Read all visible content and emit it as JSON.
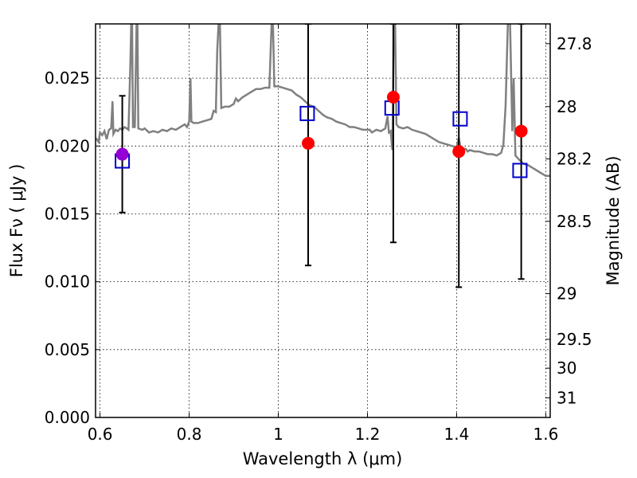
{
  "chart_data": {
    "type": "scatter",
    "xlabel": "Wavelength  λ (μm)",
    "ylabel": "Flux  Fν  ( μJy )",
    "ylabel_right": "Magnitude (AB)",
    "xlim": [
      0.59,
      1.61
    ],
    "ylim": [
      0.0,
      0.029
    ],
    "grid": true,
    "x_ticks": [
      0.6,
      0.8,
      1.0,
      1.2,
      1.4,
      1.6
    ],
    "x_tick_labels": [
      "0.6",
      "0.8",
      "1",
      "1.2",
      "1.4",
      "1.6"
    ],
    "y_ticks": [
      0.0,
      0.005,
      0.01,
      0.015,
      0.02,
      0.025
    ],
    "y_tick_labels": [
      "0.000",
      "0.005",
      "0.010",
      "0.015",
      "0.020",
      "0.025"
    ],
    "right_ticks": [
      {
        "mag": 27.8,
        "label": "27.8"
      },
      {
        "mag": 28.0,
        "label": "28"
      },
      {
        "mag": 28.2,
        "label": "28.2"
      },
      {
        "mag": 28.5,
        "label": "28.5"
      },
      {
        "mag": 29.0,
        "label": "29"
      },
      {
        "mag": 29.5,
        "label": "29.5"
      },
      {
        "mag": 30.0,
        "label": "30"
      },
      {
        "mag": 31.0,
        "label": "31"
      }
    ],
    "observed": [
      {
        "x": 0.65,
        "y": 0.0194,
        "yerr_low": 0.0151,
        "yerr_high": 0.0237,
        "color": "#9400d3"
      },
      {
        "x": 1.067,
        "y": 0.0202,
        "yerr_low": 0.0112,
        "yerr_high": 0.029,
        "color": "#ff0000"
      },
      {
        "x": 1.258,
        "y": 0.0236,
        "yerr_low": 0.0129,
        "yerr_high": 0.029,
        "color": "#ff0000"
      },
      {
        "x": 1.405,
        "y": 0.0196,
        "yerr_low": 0.0096,
        "yerr_high": 0.029,
        "color": "#ff0000"
      },
      {
        "x": 1.545,
        "y": 0.0211,
        "yerr_low": 0.0102,
        "yerr_high": 0.029,
        "color": "#ff0000"
      }
    ],
    "model_points": {
      "color": "#0000cc",
      "points": [
        {
          "x": 0.65,
          "y": 0.0189
        },
        {
          "x": 1.065,
          "y": 0.0224
        },
        {
          "x": 1.255,
          "y": 0.0228
        },
        {
          "x": 1.408,
          "y": 0.022
        },
        {
          "x": 1.542,
          "y": 0.0182
        }
      ]
    },
    "spectrum": {
      "color": "#808080",
      "points": [
        [
          0.59,
          0.0206
        ],
        [
          0.597,
          0.0203
        ],
        [
          0.6,
          0.021
        ],
        [
          0.605,
          0.0208
        ],
        [
          0.61,
          0.0211
        ],
        [
          0.615,
          0.0205
        ],
        [
          0.62,
          0.0212
        ],
        [
          0.625,
          0.0213
        ],
        [
          0.628,
          0.0233
        ],
        [
          0.63,
          0.0209
        ],
        [
          0.635,
          0.0212
        ],
        [
          0.64,
          0.0211
        ],
        [
          0.645,
          0.0213
        ],
        [
          0.65,
          0.0212
        ],
        [
          0.655,
          0.0214
        ],
        [
          0.66,
          0.0213
        ],
        [
          0.664,
          0.0212
        ],
        [
          0.668,
          0.026
        ],
        [
          0.67,
          0.029
        ],
        [
          0.672,
          0.029
        ],
        [
          0.674,
          0.0214
        ],
        [
          0.678,
          0.0214
        ],
        [
          0.682,
          0.029
        ],
        [
          0.684,
          0.029
        ],
        [
          0.686,
          0.0213
        ],
        [
          0.695,
          0.0212
        ],
        [
          0.7,
          0.0213
        ],
        [
          0.71,
          0.021
        ],
        [
          0.72,
          0.0211
        ],
        [
          0.73,
          0.021
        ],
        [
          0.74,
          0.0212
        ],
        [
          0.75,
          0.0211
        ],
        [
          0.76,
          0.0213
        ],
        [
          0.77,
          0.0212
        ],
        [
          0.78,
          0.0214
        ],
        [
          0.79,
          0.0216
        ],
        [
          0.795,
          0.0214
        ],
        [
          0.8,
          0.0218
        ],
        [
          0.803,
          0.025
        ],
        [
          0.805,
          0.0218
        ],
        [
          0.81,
          0.0217
        ],
        [
          0.82,
          0.0217
        ],
        [
          0.83,
          0.0218
        ],
        [
          0.84,
          0.0219
        ],
        [
          0.85,
          0.022
        ],
        [
          0.855,
          0.0226
        ],
        [
          0.86,
          0.0225
        ],
        [
          0.863,
          0.027
        ],
        [
          0.866,
          0.029
        ],
        [
          0.869,
          0.029
        ],
        [
          0.872,
          0.0228
        ],
        [
          0.88,
          0.0229
        ],
        [
          0.89,
          0.0229
        ],
        [
          0.9,
          0.0231
        ],
        [
          0.905,
          0.0235
        ],
        [
          0.91,
          0.0233
        ],
        [
          0.92,
          0.0236
        ],
        [
          0.93,
          0.0238
        ],
        [
          0.94,
          0.024
        ],
        [
          0.95,
          0.0242
        ],
        [
          0.96,
          0.0242
        ],
        [
          0.97,
          0.0243
        ],
        [
          0.98,
          0.0243
        ],
        [
          0.985,
          0.029
        ],
        [
          0.988,
          0.029
        ],
        [
          0.991,
          0.0244
        ],
        [
          1.0,
          0.0244
        ],
        [
          1.01,
          0.0243
        ],
        [
          1.02,
          0.0242
        ],
        [
          1.03,
          0.0241
        ],
        [
          1.04,
          0.0238
        ],
        [
          1.05,
          0.0236
        ],
        [
          1.06,
          0.0233
        ],
        [
          1.07,
          0.023
        ],
        [
          1.08,
          0.0229
        ],
        [
          1.09,
          0.0226
        ],
        [
          1.1,
          0.0223
        ],
        [
          1.11,
          0.0221
        ],
        [
          1.12,
          0.022
        ],
        [
          1.13,
          0.0218
        ],
        [
          1.14,
          0.0217
        ],
        [
          1.15,
          0.0216
        ],
        [
          1.16,
          0.0214
        ],
        [
          1.17,
          0.0214
        ],
        [
          1.18,
          0.0213
        ],
        [
          1.19,
          0.0212
        ],
        [
          1.2,
          0.0212
        ],
        [
          1.205,
          0.0212
        ],
        [
          1.21,
          0.021
        ],
        [
          1.22,
          0.0212
        ],
        [
          1.23,
          0.0211
        ],
        [
          1.24,
          0.0213
        ],
        [
          1.245,
          0.0222
        ],
        [
          1.248,
          0.021
        ],
        [
          1.252,
          0.0211
        ],
        [
          1.256,
          0.0197
        ],
        [
          1.259,
          0.029
        ],
        [
          1.262,
          0.029
        ],
        [
          1.265,
          0.0216
        ],
        [
          1.27,
          0.0214
        ],
        [
          1.28,
          0.0213
        ],
        [
          1.29,
          0.0214
        ],
        [
          1.3,
          0.0212
        ],
        [
          1.31,
          0.0211
        ],
        [
          1.32,
          0.021
        ],
        [
          1.33,
          0.0209
        ],
        [
          1.34,
          0.0207
        ],
        [
          1.35,
          0.0205
        ],
        [
          1.36,
          0.0203
        ],
        [
          1.37,
          0.0202
        ],
        [
          1.38,
          0.0201
        ],
        [
          1.39,
          0.02
        ],
        [
          1.4,
          0.0199
        ],
        [
          1.405,
          0.0206
        ],
        [
          1.41,
          0.0197
        ],
        [
          1.42,
          0.0198
        ],
        [
          1.425,
          0.0196
        ],
        [
          1.43,
          0.0197
        ],
        [
          1.44,
          0.0196
        ],
        [
          1.45,
          0.0196
        ],
        [
          1.46,
          0.0195
        ],
        [
          1.47,
          0.0194
        ],
        [
          1.48,
          0.0194
        ],
        [
          1.49,
          0.0193
        ],
        [
          1.5,
          0.0195
        ],
        [
          1.505,
          0.0201
        ],
        [
          1.51,
          0.023
        ],
        [
          1.515,
          0.029
        ],
        [
          1.52,
          0.029
        ],
        [
          1.525,
          0.0211
        ],
        [
          1.528,
          0.025
        ],
        [
          1.532,
          0.0193
        ],
        [
          1.54,
          0.019
        ],
        [
          1.55,
          0.0187
        ],
        [
          1.56,
          0.0186
        ],
        [
          1.57,
          0.0184
        ],
        [
          1.58,
          0.0182
        ],
        [
          1.59,
          0.018
        ],
        [
          1.6,
          0.0178
        ],
        [
          1.61,
          0.0178
        ]
      ]
    }
  }
}
